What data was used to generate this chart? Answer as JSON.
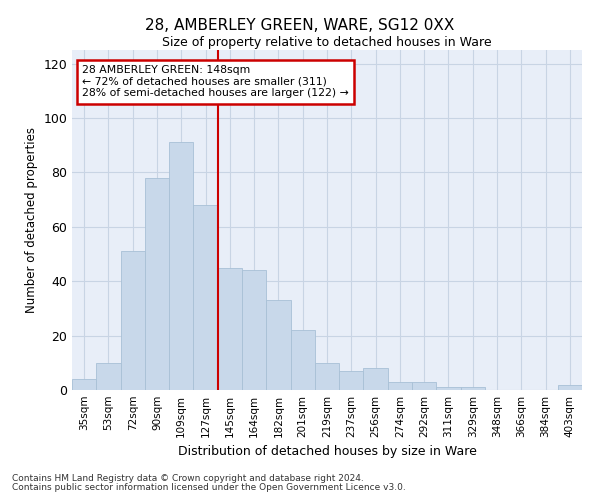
{
  "title": "28, AMBERLEY GREEN, WARE, SG12 0XX",
  "subtitle": "Size of property relative to detached houses in Ware",
  "xlabel": "Distribution of detached houses by size in Ware",
  "ylabel": "Number of detached properties",
  "categories": [
    "35sqm",
    "53sqm",
    "72sqm",
    "90sqm",
    "109sqm",
    "127sqm",
    "145sqm",
    "164sqm",
    "182sqm",
    "201sqm",
    "219sqm",
    "237sqm",
    "256sqm",
    "274sqm",
    "292sqm",
    "311sqm",
    "329sqm",
    "348sqm",
    "366sqm",
    "384sqm",
    "403sqm"
  ],
  "values": [
    4,
    10,
    51,
    78,
    91,
    68,
    45,
    44,
    33,
    22,
    10,
    7,
    8,
    3,
    3,
    1,
    1,
    0,
    0,
    0,
    2
  ],
  "bar_color": "#c8d8ea",
  "bar_edge_color": "#a8c0d6",
  "grid_color": "#c8d4e4",
  "bg_color": "#e8eef8",
  "vline_color": "#cc0000",
  "vline_index": 6,
  "annotation_line1": "28 AMBERLEY GREEN: 148sqm",
  "annotation_line2": "← 72% of detached houses are smaller (311)",
  "annotation_line3": "28% of semi-detached houses are larger (122) →",
  "annotation_box_color": "#cc0000",
  "ylim": [
    0,
    125
  ],
  "yticks": [
    0,
    20,
    40,
    60,
    80,
    100,
    120
  ],
  "footer1": "Contains HM Land Registry data © Crown copyright and database right 2024.",
  "footer2": "Contains public sector information licensed under the Open Government Licence v3.0."
}
